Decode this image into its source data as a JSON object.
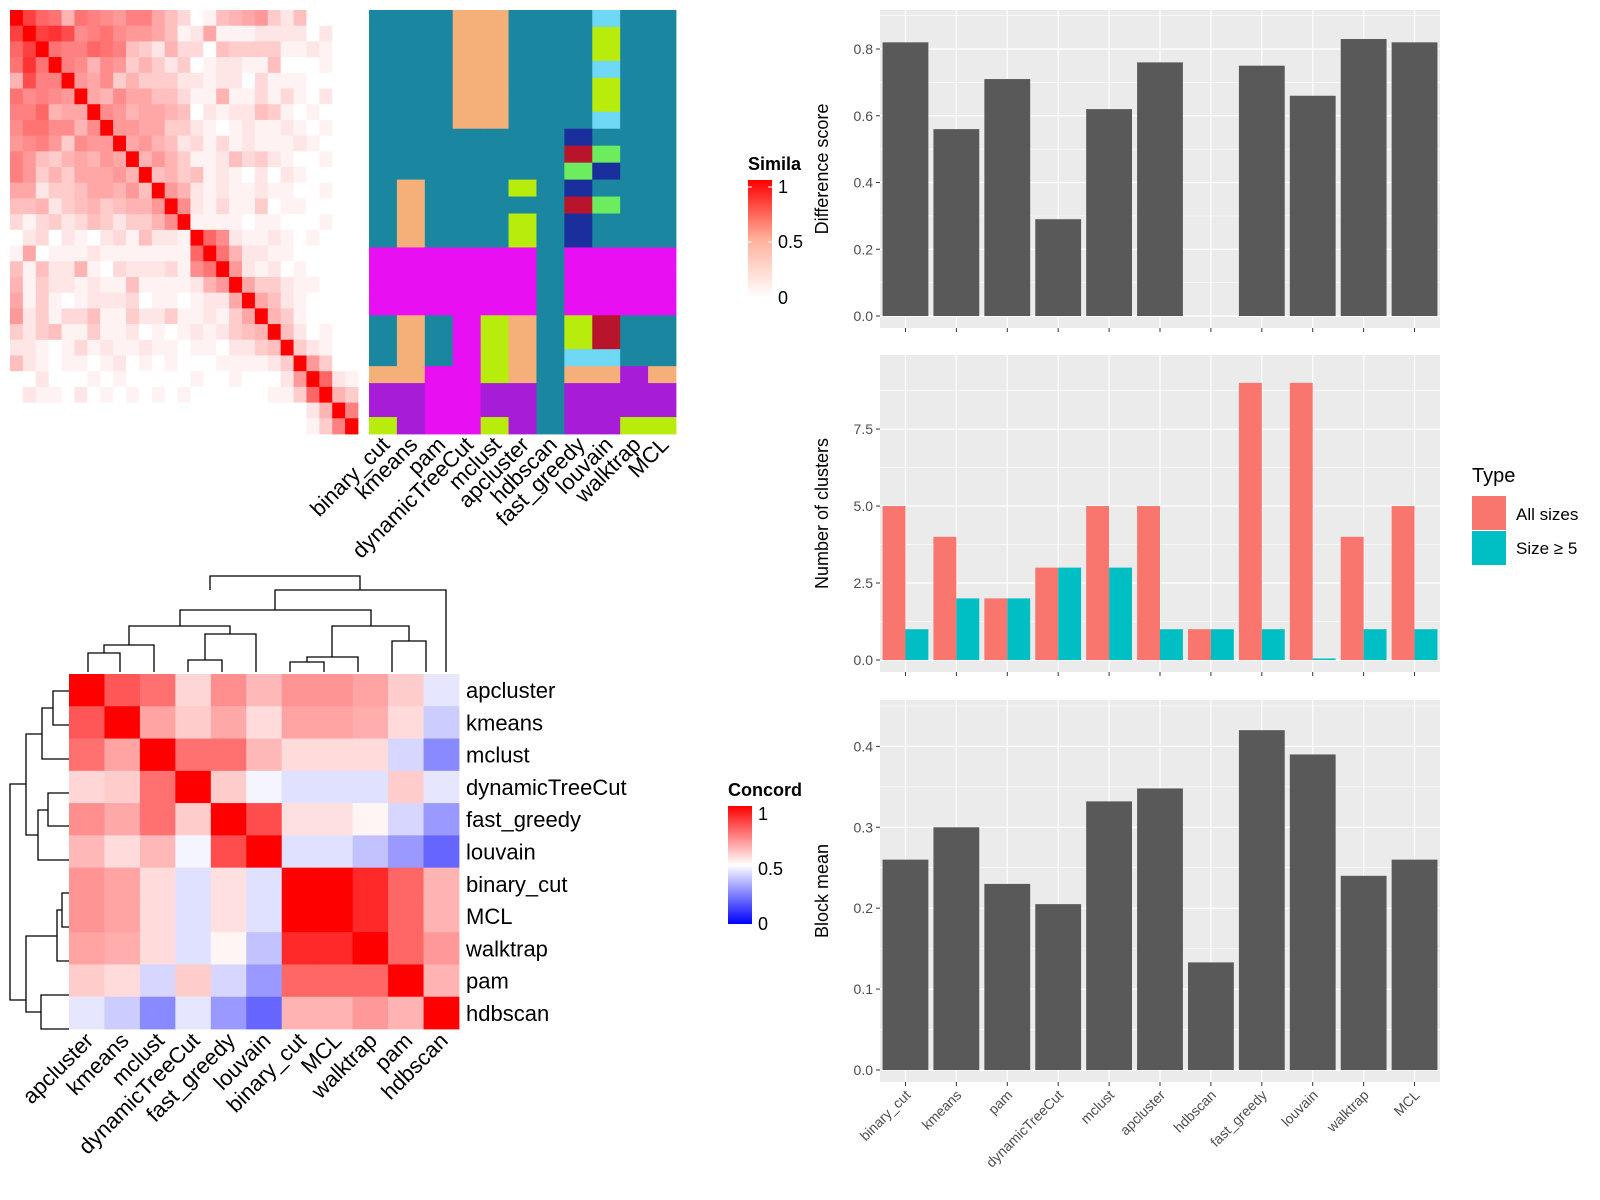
{
  "methods": [
    "binary_cut",
    "kmeans",
    "pam",
    "dynamicTreeCut",
    "mclust",
    "apcluster",
    "hdbscan",
    "fast_greedy",
    "louvain",
    "walktrap",
    "MCL"
  ],
  "colors": {
    "panel_bg": "#ebebeb",
    "grid": "#ffffff",
    "bar_dark": "#595959",
    "all_sizes": "#f8766d",
    "size_ge5": "#00bfc4",
    "partition_palette": [
      "#1a869f",
      "#f5b07a",
      "#e80ff2",
      "#a71cd6",
      "#b7ec0c",
      "#6fd8f5",
      "#6cec5e",
      "#b8152d",
      "#1a2e9c"
    ]
  },
  "similarity_heatmap": {
    "legend_title": "Simila",
    "legend_ticks": [
      "1",
      "0.5",
      "0"
    ],
    "matrix": [
      [
        1,
        0.75,
        0.6,
        0.55,
        0.3,
        0.55,
        0.5,
        0.45,
        0.4,
        0.5,
        0.5,
        0.35,
        0.25,
        0.15,
        0,
        0.05,
        0.25,
        0.3,
        0.35,
        0.4,
        0.2,
        0.1,
        0.25,
        0,
        0,
        0,
        0
      ],
      [
        0.75,
        1,
        0.75,
        0.8,
        0.7,
        0.45,
        0.5,
        0.55,
        0.45,
        0.4,
        0.4,
        0.35,
        0.25,
        0.05,
        0.1,
        0.35,
        0.05,
        0.05,
        0.05,
        0.1,
        0.1,
        0.1,
        0.1,
        0,
        0.1,
        0,
        0
      ],
      [
        0.6,
        0.75,
        1,
        0.55,
        0.5,
        0.5,
        0.6,
        0.55,
        0.5,
        0.25,
        0.2,
        0.1,
        0.3,
        0.15,
        0.15,
        0,
        0.25,
        0.2,
        0.2,
        0.2,
        0.2,
        0.05,
        0.05,
        0.1,
        0.05,
        0,
        0
      ],
      [
        0.55,
        0.8,
        0.55,
        1,
        0.5,
        0.45,
        0.3,
        0.45,
        0.4,
        0.2,
        0.3,
        0.2,
        0.1,
        0.2,
        0,
        0.05,
        0.1,
        0.1,
        0.05,
        0.05,
        0.25,
        0,
        0,
        0,
        0.05,
        0,
        0
      ],
      [
        0.3,
        0.7,
        0.5,
        0.5,
        1,
        0.4,
        0.35,
        0.45,
        0.2,
        0.3,
        0.2,
        0.2,
        0.2,
        0.1,
        0.1,
        0.05,
        0.1,
        0.1,
        0,
        0.15,
        0.05,
        0.05,
        0.05,
        0,
        0,
        0,
        0
      ],
      [
        0.55,
        0.45,
        0.5,
        0.45,
        0.4,
        1,
        0.35,
        0.3,
        0.45,
        0.35,
        0.35,
        0.25,
        0.25,
        0.15,
        0.05,
        0.05,
        0.3,
        0.05,
        0.05,
        0.15,
        0.05,
        0.15,
        0.05,
        0,
        0.1,
        0,
        0
      ],
      [
        0.5,
        0.5,
        0.6,
        0.3,
        0.35,
        0.35,
        1,
        0.45,
        0.4,
        0.3,
        0.35,
        0.35,
        0.3,
        0.25,
        0,
        0.1,
        0.05,
        0.1,
        0.1,
        0.25,
        0.2,
        0.05,
        0,
        0.05,
        0,
        0,
        0
      ],
      [
        0.45,
        0.55,
        0.55,
        0.45,
        0.45,
        0.3,
        0.45,
        1,
        0.4,
        0.4,
        0.35,
        0.35,
        0.2,
        0.2,
        0.1,
        0.05,
        0,
        0.05,
        0.1,
        0.05,
        0.05,
        0.1,
        0.05,
        0,
        0.05,
        0,
        0
      ],
      [
        0.4,
        0.45,
        0.5,
        0.4,
        0.2,
        0.45,
        0.4,
        0.4,
        1,
        0.35,
        0.4,
        0.3,
        0.25,
        0.1,
        0.15,
        0.05,
        0.15,
        0.05,
        0.1,
        0.05,
        0.05,
        0.05,
        0.1,
        0.05,
        0,
        0,
        0
      ],
      [
        0.5,
        0.4,
        0.25,
        0.2,
        0.3,
        0.35,
        0.3,
        0.4,
        0.35,
        1,
        0.3,
        0.4,
        0.3,
        0.2,
        0.05,
        0.05,
        0.1,
        0.25,
        0.15,
        0.2,
        0.1,
        0.05,
        0,
        0,
        0.05,
        0,
        0
      ],
      [
        0.5,
        0.4,
        0.2,
        0.3,
        0.2,
        0.35,
        0.35,
        0.35,
        0.4,
        0.3,
        1,
        0.25,
        0.3,
        0.2,
        0.25,
        0.05,
        0.1,
        0.05,
        0,
        0.1,
        0,
        0.1,
        0.05,
        0,
        0,
        0,
        0
      ],
      [
        0.35,
        0.35,
        0.1,
        0.2,
        0.2,
        0.25,
        0.35,
        0.35,
        0.3,
        0.4,
        0.25,
        1,
        0.4,
        0.3,
        0.1,
        0.05,
        0.1,
        0.05,
        0.05,
        0.1,
        0.05,
        0.05,
        0,
        0,
        0.05,
        0,
        0
      ],
      [
        0.25,
        0.25,
        0.3,
        0.1,
        0.2,
        0.25,
        0.3,
        0.2,
        0.25,
        0.3,
        0.3,
        0.4,
        1,
        0.45,
        0.1,
        0.05,
        0.15,
        0.05,
        0.05,
        0.2,
        0,
        0.05,
        0.05,
        0,
        0,
        0,
        0
      ],
      [
        0.15,
        0.05,
        0.15,
        0.2,
        0.1,
        0.15,
        0.25,
        0.2,
        0.1,
        0.2,
        0.2,
        0.3,
        0.45,
        1,
        0.05,
        0.05,
        0.05,
        0.05,
        0,
        0.05,
        0.05,
        0,
        0,
        0,
        0.05,
        0,
        0
      ],
      [
        0,
        0.1,
        0.15,
        0,
        0.1,
        0.05,
        0,
        0.1,
        0.15,
        0.05,
        0.25,
        0.1,
        0.1,
        0.05,
        1,
        0.6,
        0.45,
        0.1,
        0.05,
        0.05,
        0.1,
        0.05,
        0,
        0.05,
        0,
        0,
        0
      ],
      [
        0.05,
        0.35,
        0,
        0.05,
        0.05,
        0.05,
        0.1,
        0.05,
        0.05,
        0.05,
        0.05,
        0.05,
        0.05,
        0.05,
        0.6,
        1,
        0.55,
        0.3,
        0.1,
        0.1,
        0.05,
        0.05,
        0,
        0,
        0,
        0,
        0
      ],
      [
        0.25,
        0.05,
        0.25,
        0.1,
        0.1,
        0.3,
        0.05,
        0,
        0.15,
        0.1,
        0.1,
        0.1,
        0.15,
        0.05,
        0.45,
        0.55,
        1,
        0.4,
        0.1,
        0.05,
        0.1,
        0,
        0.05,
        0,
        0,
        0,
        0
      ],
      [
        0.3,
        0.05,
        0.2,
        0.1,
        0.1,
        0.05,
        0.1,
        0.05,
        0.05,
        0.25,
        0.05,
        0.05,
        0.05,
        0.05,
        0.1,
        0.3,
        0.4,
        1,
        0.35,
        0.2,
        0.2,
        0.1,
        0.05,
        0.05,
        0,
        0,
        0
      ],
      [
        0.35,
        0.05,
        0.2,
        0.05,
        0,
        0.05,
        0.1,
        0.1,
        0.1,
        0.15,
        0,
        0.05,
        0.05,
        0,
        0.05,
        0.1,
        0.1,
        0.35,
        1,
        0.35,
        0.25,
        0.1,
        0.05,
        0,
        0,
        0,
        0
      ],
      [
        0.4,
        0.1,
        0.2,
        0.05,
        0.15,
        0.15,
        0.25,
        0.05,
        0.05,
        0.2,
        0.1,
        0.1,
        0.2,
        0.05,
        0.05,
        0.1,
        0.05,
        0.2,
        0.35,
        1,
        0.3,
        0.2,
        0.05,
        0,
        0,
        0,
        0
      ],
      [
        0.2,
        0.1,
        0.2,
        0.25,
        0.05,
        0.05,
        0.2,
        0.05,
        0.05,
        0.1,
        0,
        0.05,
        0,
        0.05,
        0.1,
        0.05,
        0.1,
        0.2,
        0.25,
        0.3,
        1,
        0.25,
        0.1,
        0,
        0.05,
        0,
        0
      ],
      [
        0.1,
        0.1,
        0.05,
        0,
        0.05,
        0.15,
        0.05,
        0.1,
        0.05,
        0.05,
        0.1,
        0.05,
        0.05,
        0,
        0.05,
        0.05,
        0,
        0.1,
        0.1,
        0.2,
        0.25,
        1,
        0.2,
        0.1,
        0.05,
        0,
        0
      ],
      [
        0.25,
        0.1,
        0.05,
        0,
        0.05,
        0.05,
        0,
        0.05,
        0.1,
        0,
        0.05,
        0,
        0.05,
        0,
        0,
        0,
        0.05,
        0.05,
        0.05,
        0.05,
        0.1,
        0.2,
        1,
        0.4,
        0.2,
        0,
        0
      ],
      [
        0,
        0,
        0.1,
        0,
        0,
        0,
        0.05,
        0,
        0.05,
        0,
        0,
        0,
        0,
        0,
        0.05,
        0,
        0,
        0.05,
        0,
        0,
        0,
        0.1,
        0.4,
        1,
        0.6,
        0.1,
        0.05
      ],
      [
        0,
        0.1,
        0.05,
        0.05,
        0,
        0.1,
        0,
        0.05,
        0,
        0.05,
        0,
        0.05,
        0,
        0.05,
        0,
        0,
        0,
        0,
        0,
        0,
        0.05,
        0.05,
        0.2,
        0.6,
        1,
        0.3,
        0.2
      ],
      [
        0,
        0,
        0,
        0,
        0,
        0,
        0,
        0,
        0,
        0,
        0,
        0,
        0,
        0,
        0,
        0,
        0,
        0,
        0,
        0,
        0,
        0,
        0,
        0.1,
        0.3,
        1,
        0.5
      ],
      [
        0,
        0,
        0,
        0,
        0,
        0,
        0,
        0,
        0,
        0,
        0,
        0,
        0,
        0,
        0,
        0,
        0,
        0,
        0,
        0,
        0,
        0,
        0,
        0.05,
        0.2,
        0.5,
        1
      ]
    ]
  },
  "partition_matrix": {
    "rows": [
      [
        0,
        0,
        0,
        1,
        1,
        0,
        0,
        0,
        5,
        0,
        0
      ],
      [
        0,
        0,
        0,
        1,
        1,
        0,
        0,
        0,
        4,
        0,
        0
      ],
      [
        0,
        0,
        0,
        1,
        1,
        0,
        0,
        0,
        4,
        0,
        0
      ],
      [
        0,
        0,
        0,
        1,
        1,
        0,
        0,
        0,
        5,
        0,
        0
      ],
      [
        0,
        0,
        0,
        1,
        1,
        0,
        0,
        0,
        4,
        0,
        0
      ],
      [
        0,
        0,
        0,
        1,
        1,
        0,
        0,
        0,
        4,
        0,
        0
      ],
      [
        0,
        0,
        0,
        1,
        1,
        0,
        0,
        0,
        5,
        0,
        0
      ],
      [
        0,
        0,
        0,
        0,
        0,
        0,
        0,
        8,
        0,
        0,
        0
      ],
      [
        0,
        0,
        0,
        0,
        0,
        0,
        0,
        7,
        6,
        0,
        0
      ],
      [
        0,
        0,
        0,
        0,
        0,
        0,
        0,
        6,
        8,
        0,
        0
      ],
      [
        0,
        1,
        0,
        0,
        0,
        4,
        0,
        8,
        0,
        0,
        0
      ],
      [
        0,
        1,
        0,
        0,
        0,
        0,
        0,
        7,
        6,
        0,
        0
      ],
      [
        0,
        1,
        0,
        0,
        0,
        4,
        0,
        8,
        0,
        0,
        0
      ],
      [
        0,
        1,
        0,
        0,
        0,
        4,
        0,
        8,
        0,
        0,
        0
      ],
      [
        2,
        2,
        2,
        2,
        2,
        2,
        0,
        2,
        2,
        2,
        2
      ],
      [
        2,
        2,
        2,
        2,
        2,
        2,
        0,
        2,
        2,
        2,
        2
      ],
      [
        2,
        2,
        2,
        2,
        2,
        2,
        0,
        2,
        2,
        2,
        2
      ],
      [
        2,
        2,
        2,
        2,
        2,
        2,
        0,
        2,
        2,
        2,
        2
      ],
      [
        0,
        1,
        0,
        2,
        4,
        1,
        0,
        4,
        7,
        0,
        0
      ],
      [
        0,
        1,
        0,
        2,
        4,
        1,
        0,
        4,
        7,
        0,
        0
      ],
      [
        0,
        1,
        0,
        2,
        4,
        1,
        0,
        5,
        5,
        0,
        0
      ],
      [
        1,
        1,
        2,
        2,
        4,
        1,
        0,
        1,
        1,
        3,
        1
      ],
      [
        3,
        3,
        2,
        2,
        3,
        3,
        0,
        3,
        3,
        3,
        3
      ],
      [
        3,
        3,
        2,
        2,
        3,
        3,
        0,
        3,
        3,
        3,
        3
      ],
      [
        4,
        3,
        2,
        2,
        4,
        3,
        0,
        3,
        3,
        4,
        4
      ]
    ]
  },
  "concordance_heatmap": {
    "legend_title": "Concord",
    "legend_ticks": [
      "1",
      "0.5",
      "0"
    ],
    "order": [
      "apcluster",
      "kmeans",
      "mclust",
      "dynamicTreeCut",
      "fast_greedy",
      "louvain",
      "binary_cut",
      "MCL",
      "walktrap",
      "pam",
      "hdbscan"
    ],
    "matrix": [
      [
        1,
        0.83,
        0.78,
        0.58,
        0.72,
        0.64,
        0.71,
        0.71,
        0.68,
        0.6,
        0.45
      ],
      [
        0.83,
        1,
        0.68,
        0.6,
        0.67,
        0.57,
        0.68,
        0.68,
        0.66,
        0.57,
        0.4
      ],
      [
        0.78,
        0.68,
        1,
        0.78,
        0.78,
        0.64,
        0.57,
        0.57,
        0.57,
        0.42,
        0.27
      ],
      [
        0.58,
        0.6,
        0.78,
        1,
        0.6,
        0.48,
        0.44,
        0.44,
        0.44,
        0.6,
        0.45
      ],
      [
        0.72,
        0.67,
        0.78,
        0.6,
        1,
        0.85,
        0.56,
        0.56,
        0.52,
        0.42,
        0.3
      ],
      [
        0.64,
        0.57,
        0.64,
        0.48,
        0.85,
        1,
        0.44,
        0.44,
        0.38,
        0.3,
        0.2
      ],
      [
        0.71,
        0.68,
        0.57,
        0.44,
        0.56,
        0.44,
        1,
        1,
        0.92,
        0.8,
        0.65
      ],
      [
        0.71,
        0.68,
        0.57,
        0.44,
        0.56,
        0.44,
        1,
        1,
        0.92,
        0.8,
        0.65
      ],
      [
        0.68,
        0.66,
        0.57,
        0.44,
        0.52,
        0.38,
        0.92,
        0.92,
        1,
        0.8,
        0.7
      ],
      [
        0.6,
        0.57,
        0.42,
        0.6,
        0.42,
        0.3,
        0.8,
        0.8,
        0.8,
        1,
        0.65
      ],
      [
        0.45,
        0.4,
        0.27,
        0.45,
        0.3,
        0.2,
        0.65,
        0.65,
        0.7,
        0.65,
        1
      ]
    ]
  },
  "chart_data": [
    {
      "type": "bar",
      "categories": [
        "binary_cut",
        "kmeans",
        "pam",
        "dynamicTreeCut",
        "mclust",
        "apcluster",
        "hdbscan",
        "fast_greedy",
        "louvain",
        "walktrap",
        "MCL"
      ],
      "values": [
        0.82,
        0.56,
        0.71,
        0.29,
        0.62,
        0.76,
        0,
        0.75,
        0.66,
        0.83,
        0.82
      ],
      "ylabel": "Difference score",
      "ylim": [
        0,
        0.875
      ],
      "yticks": [
        0.0,
        0.2,
        0.4,
        0.6,
        0.8
      ],
      "ytick_labels": [
        "0.0",
        "0.2",
        "0.4",
        "0.6",
        "0.8"
      ],
      "grid": true
    },
    {
      "type": "bar",
      "categories": [
        "binary_cut",
        "kmeans",
        "pam",
        "dynamicTreeCut",
        "mclust",
        "apcluster",
        "hdbscan",
        "fast_greedy",
        "louvain",
        "walktrap",
        "MCL"
      ],
      "series": [
        {
          "name": "All sizes",
          "values": [
            5,
            4,
            2,
            3,
            5,
            5,
            1,
            9,
            9,
            4,
            5
          ]
        },
        {
          "name": "Size ≥ 5",
          "values": [
            1,
            2,
            2,
            3,
            3,
            1,
            1,
            1,
            0,
            1,
            1
          ]
        }
      ],
      "ylabel": "Number of clusters",
      "ylim": [
        0,
        9.45
      ],
      "yticks": [
        0,
        2.5,
        5,
        7.5
      ],
      "ytick_labels": [
        "0.0",
        "2.5",
        "5.0",
        "7.5"
      ],
      "legend_title": "Type",
      "legend_position": "right",
      "grid": true
    },
    {
      "type": "bar",
      "categories": [
        "binary_cut",
        "kmeans",
        "pam",
        "dynamicTreeCut",
        "mclust",
        "apcluster",
        "hdbscan",
        "fast_greedy",
        "louvain",
        "walktrap",
        "MCL"
      ],
      "values": [
        0.26,
        0.3,
        0.23,
        0.205,
        0.332,
        0.348,
        0.133,
        0.42,
        0.39,
        0.24,
        0.26
      ],
      "ylabel": "Block mean",
      "ylim": [
        0,
        0.44
      ],
      "yticks": [
        0.0,
        0.1,
        0.2,
        0.3,
        0.4
      ],
      "ytick_labels": [
        "0.0",
        "0.1",
        "0.2",
        "0.3",
        "0.4"
      ],
      "grid": true
    }
  ]
}
